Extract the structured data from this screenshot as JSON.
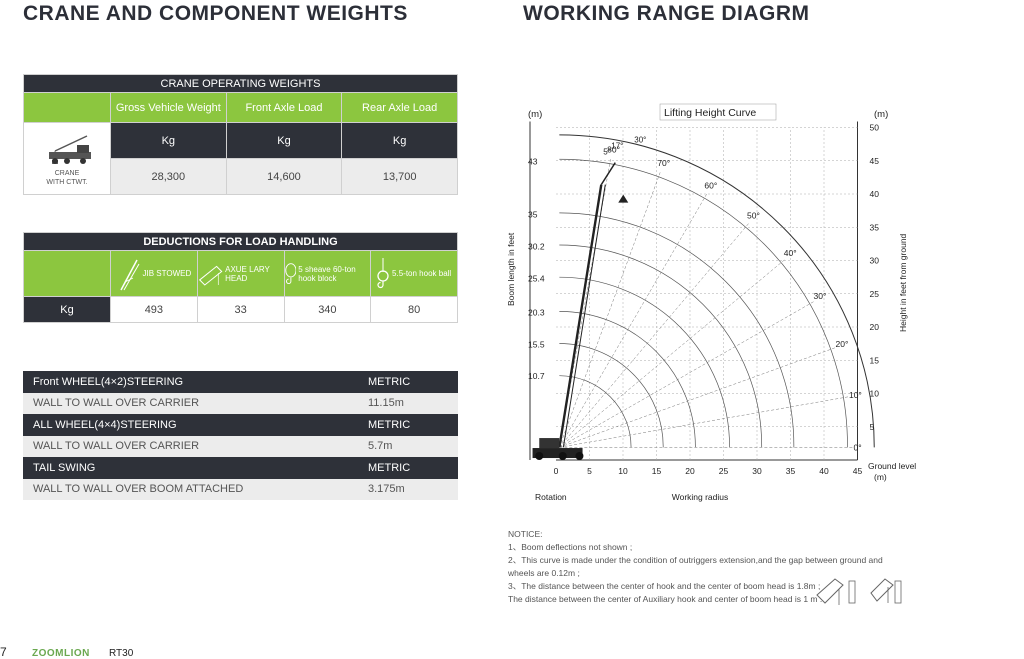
{
  "left_title": "CRANE AND COMPONENT WEIGHTS",
  "right_title": "WORKING RANGE DIAGRM",
  "operating": {
    "header": "CRANE OPERATING WEIGHTS",
    "columns": [
      "Gross Vehicle Weight",
      "Front Axle Load",
      "Rear Axle Load"
    ],
    "unit_row": [
      "Kg",
      "Kg",
      "Kg"
    ],
    "crane_label_1": "CRANE",
    "crane_label_2": "WITH CTWT.",
    "values": [
      "28,300",
      "14,600",
      "13,700"
    ]
  },
  "deductions": {
    "header": "DEDUCTIONS FOR LOAD HANDLING",
    "items": [
      "JIB STOWED",
      "AXUE LARY HEAD",
      "5 sheave 60-ton hook block",
      "5.5-ton hook ball"
    ],
    "unit": "Kg",
    "values": [
      "493",
      "33",
      "340",
      "80"
    ]
  },
  "specs": [
    {
      "label": "Front WHEEL(4×2)STEERING",
      "value": "METRIC",
      "style": "dark"
    },
    {
      "label": "WALL TO WALL OVER CARRIER",
      "value": "11.15m",
      "style": "grey"
    },
    {
      "label": "ALL WHEEL(4×4)STEERING",
      "value": "METRIC",
      "style": "dark"
    },
    {
      "label": "WALL TO WALL OVER CARRIER",
      "value": "5.7m",
      "style": "grey"
    },
    {
      "label": "TAIL SWING",
      "value": "METRIC",
      "style": "dark"
    },
    {
      "label": "WALL TO WALL OVER BOOM ATTACHED",
      "value": "3.175m",
      "style": "grey"
    }
  ],
  "chart_data": {
    "type": "line",
    "title": "Lifting Height Curve",
    "left_unit": "(m)",
    "right_unit": "(m)",
    "left_axis_label": "Boom length in feet",
    "right_axis_label": "Height in feet from ground",
    "x_label": "Working radius",
    "rotation_label": "Rotation",
    "ground_label": "Ground level",
    "ground_unit": "(m)",
    "x_ticks": [
      0,
      5,
      10,
      15,
      20,
      25,
      30,
      35,
      40,
      45
    ],
    "right_ticks": [
      5,
      10,
      15,
      20,
      25,
      30,
      35,
      40,
      45,
      50
    ],
    "boom_lengths": [
      10.7,
      15.5,
      20.3,
      25.4,
      30.2,
      35,
      43
    ],
    "angles": [
      "0°",
      "10°",
      "20°",
      "30°",
      "40°",
      "50°",
      "60°",
      "70°",
      "80°"
    ],
    "jib_angles": [
      "5°",
      "17°",
      "30°"
    ],
    "xlim": [
      0,
      45
    ],
    "ylim": [
      0,
      50
    ]
  },
  "notice": {
    "title": "NOTICE:",
    "lines": [
      "1、Boom deflections not shown ;",
      "2、This curve is made under the condition of outriggers extension,and the gap between ground and wheels are 0.12m ;",
      "3、The distance between the center of hook and the center of boom head is 1.8m ;",
      "The distance between the center of Auxiliary hook and center of boom head is 1 m ."
    ]
  },
  "footer": {
    "page": "7",
    "brand": "ZOOMLION",
    "model": "RT30"
  }
}
